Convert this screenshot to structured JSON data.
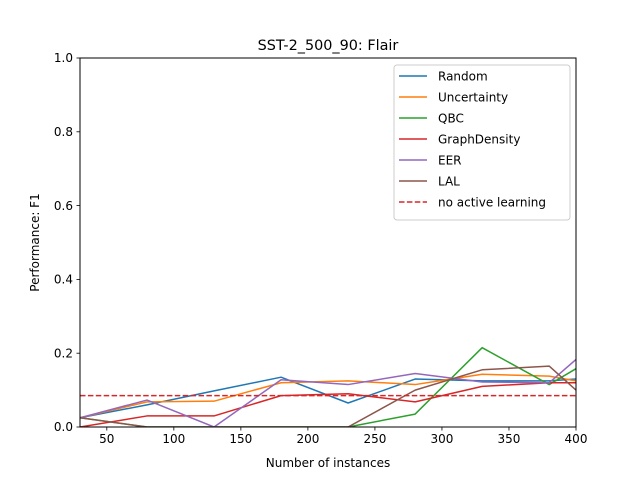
{
  "chart_data": {
    "type": "line",
    "title": "SST-2_500_90: Flair",
    "xlabel": "Number of instances",
    "ylabel": "Performance: F1",
    "xlim": [
      30,
      400
    ],
    "ylim": [
      0,
      1.0
    ],
    "xticks": [
      50,
      100,
      150,
      200,
      250,
      300,
      350,
      400
    ],
    "xtick_labels": [
      "50",
      "100",
      "150",
      "200",
      "250",
      "300",
      "350",
      "400"
    ],
    "yticks": [
      0,
      0.2,
      0.4,
      0.6,
      0.8,
      1.0
    ],
    "ytick_labels": [
      "0.0",
      "0.2",
      "0.4",
      "0.6",
      "0.8",
      "1.0"
    ],
    "grid": false,
    "legend_position": "upper right",
    "x": [
      30,
      80,
      130,
      180,
      230,
      280,
      330,
      380,
      400
    ],
    "series": [
      {
        "name": "Random",
        "color": "#1f77b4",
        "style": "solid",
        "values": [
          0.025,
          0.06,
          0.098,
          0.135,
          0.065,
          0.13,
          0.125,
          0.125,
          0.13
        ]
      },
      {
        "name": "Uncertainty",
        "color": "#ff7f0e",
        "style": "solid",
        "values": [
          0.025,
          0.068,
          0.07,
          0.12,
          0.125,
          0.115,
          0.143,
          0.138,
          0.125
        ]
      },
      {
        "name": "QBC",
        "color": "#2ca02c",
        "style": "solid",
        "values": [
          0.025,
          0.0,
          0.0,
          0.0,
          0.0,
          0.035,
          0.215,
          0.115,
          0.158
        ]
      },
      {
        "name": "GraphDensity",
        "color": "#d62728",
        "style": "solid",
        "values": [
          0.0,
          0.03,
          0.03,
          0.085,
          0.09,
          0.068,
          0.11,
          0.12,
          0.12
        ]
      },
      {
        "name": "EER",
        "color": "#9467bd",
        "style": "solid",
        "values": [
          0.025,
          0.073,
          0.0,
          0.128,
          0.115,
          0.145,
          0.122,
          0.12,
          0.183
        ]
      },
      {
        "name": "LAL",
        "color": "#8c564b",
        "style": "solid",
        "values": [
          0.025,
          0.0,
          0.0,
          0.0,
          0.0,
          0.1,
          0.155,
          0.165,
          0.1
        ]
      },
      {
        "name": "no active learning",
        "color": "#d62728",
        "style": "dashed",
        "values": [
          0.085,
          0.085,
          0.085,
          0.085,
          0.085,
          0.085,
          0.085,
          0.085,
          0.085
        ]
      }
    ]
  }
}
